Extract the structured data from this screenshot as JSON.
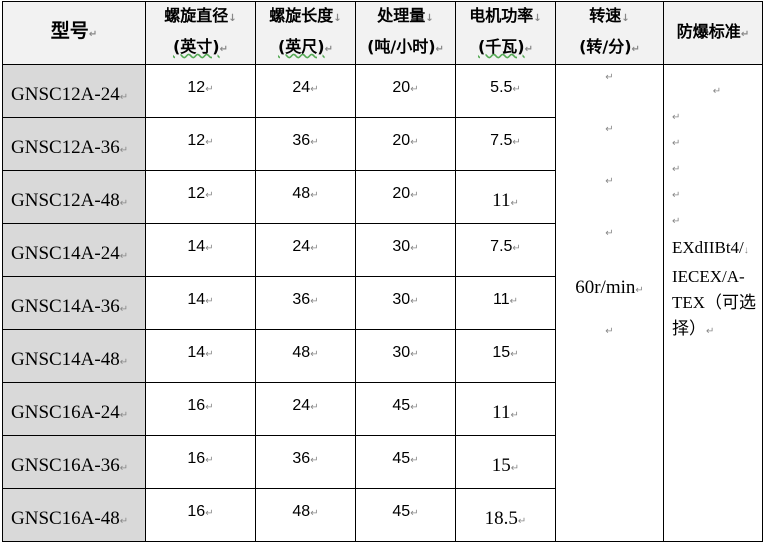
{
  "table": {
    "headers": [
      {
        "line1": "型号",
        "line2": ""
      },
      {
        "line1": "螺旋直径",
        "line2": "(英寸)"
      },
      {
        "line1": "螺旋长度",
        "line2": "(英尺)"
      },
      {
        "line1": "处理量",
        "line2": "(吨/小时)"
      },
      {
        "line1": "电机功率",
        "line2": "(千瓦)"
      },
      {
        "line1": "转速",
        "line2": "(转/分)"
      },
      {
        "line1": "防爆标准",
        "line2": ""
      }
    ],
    "rows": [
      [
        "GNSC12A-24",
        "12",
        "24",
        "20",
        "5.5"
      ],
      [
        "GNSC12A-36",
        "12",
        "36",
        "20",
        "7.5"
      ],
      [
        "GNSC12A-48",
        "12",
        "48",
        "20",
        "11"
      ],
      [
        "GNSC14A-24",
        "14",
        "24",
        "30",
        "7.5"
      ],
      [
        "GNSC14A-36",
        "14",
        "36",
        "30",
        "11"
      ],
      [
        "GNSC14A-48",
        "14",
        "48",
        "30",
        "15"
      ],
      [
        "GNSC16A-24",
        "16",
        "24",
        "45",
        "11"
      ],
      [
        "GNSC16A-36",
        "16",
        "36",
        "45",
        "15"
      ],
      [
        "GNSC16A-48",
        "16",
        "48",
        "45",
        "18.5"
      ]
    ],
    "speed": "60r/min",
    "standard": {
      "line1": "EXdIIBt4/",
      "line2": "IECEX/A-",
      "line3": "TEX（可选",
      "line4": "择）"
    }
  }
}
